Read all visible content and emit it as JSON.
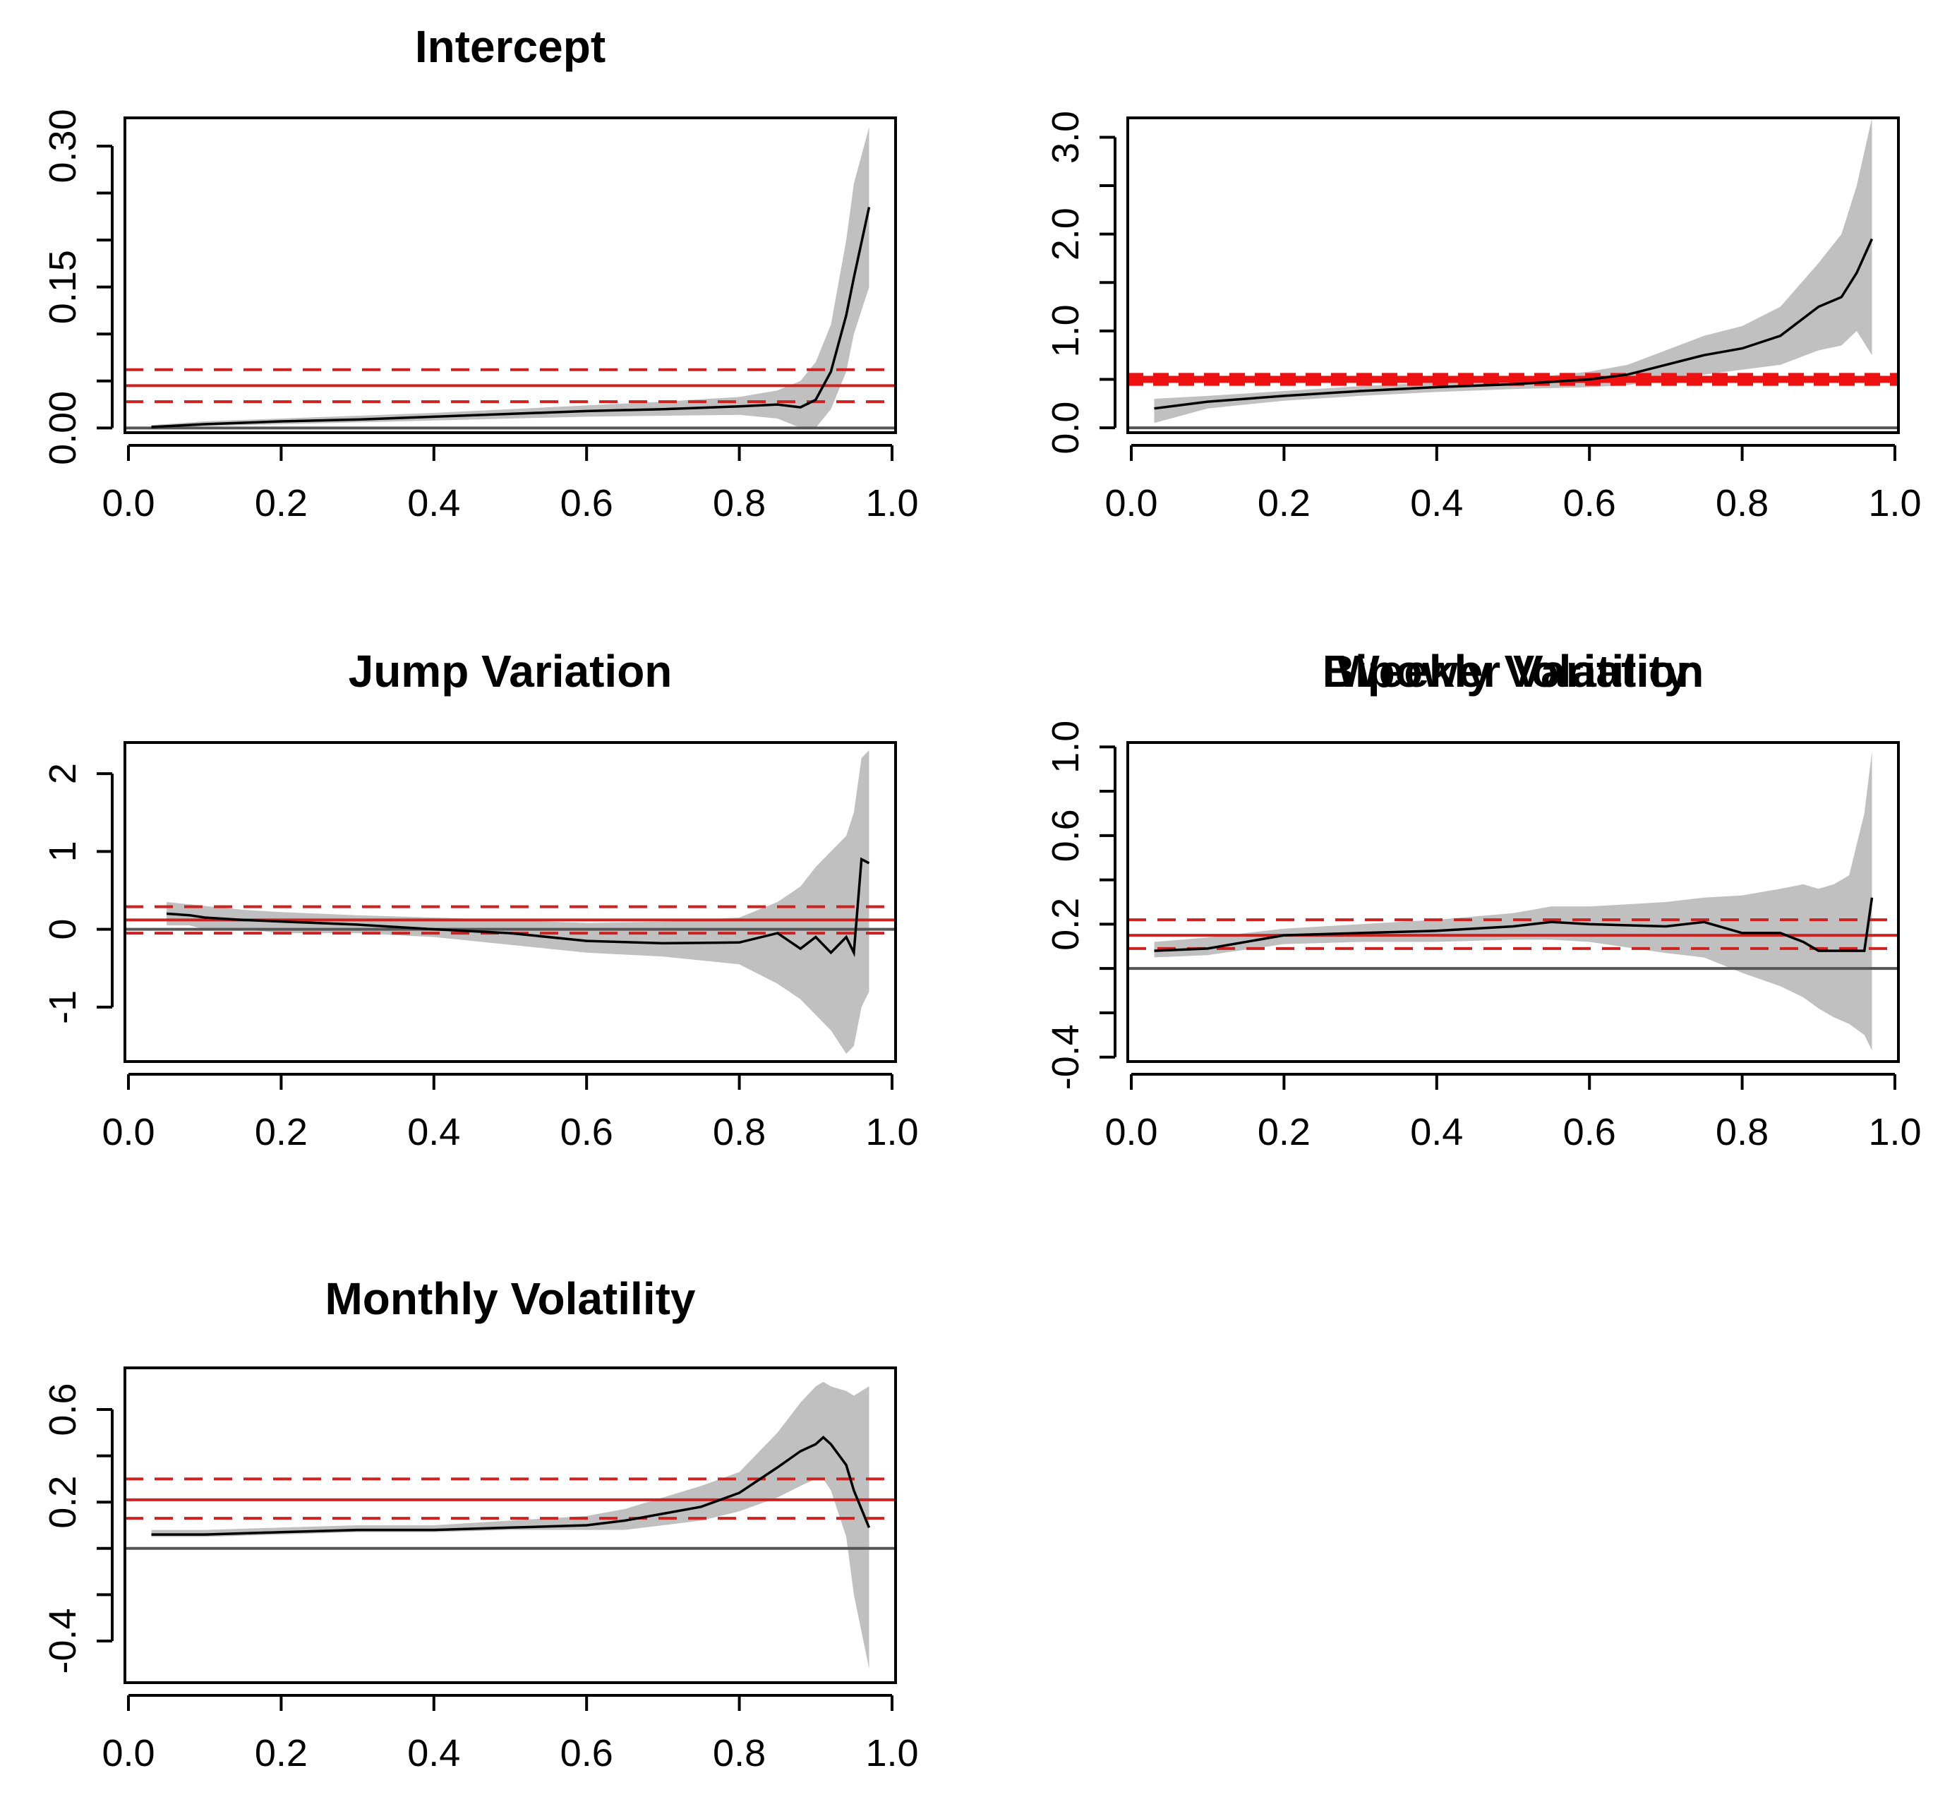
{
  "chart_data": [
    {
      "type": "line",
      "title": "Intercept",
      "xlabel": "",
      "ylabel": "",
      "xlim": [
        0.0,
        1.0
      ],
      "ylim": [
        -0.005,
        0.33
      ],
      "x_ticks": [
        "0.0",
        "0.2",
        "0.4",
        "0.6",
        "0.8",
        "1.0"
      ],
      "y_ticks": [
        0.0,
        0.05,
        0.1,
        0.15,
        0.2,
        0.25,
        0.3
      ],
      "y_tick_labels": [
        "0.00",
        "",
        "",
        "0.15",
        "",
        "",
        "0.30"
      ],
      "zero_line": 0,
      "reference_lines": {
        "estimate": 0.045,
        "lower": 0.028,
        "upper": 0.062,
        "color": "#cc2222"
      },
      "series": [
        {
          "x": [
            0.03,
            0.1,
            0.2,
            0.3,
            0.4,
            0.5,
            0.6,
            0.7,
            0.8,
            0.85,
            0.88,
            0.9,
            0.92,
            0.94,
            0.95,
            0.97
          ],
          "values": [
            0.001,
            0.004,
            0.007,
            0.009,
            0.012,
            0.015,
            0.018,
            0.02,
            0.023,
            0.025,
            0.022,
            0.03,
            0.06,
            0.12,
            0.16,
            0.235
          ],
          "lower": [
            0.0,
            0.002,
            0.004,
            0.006,
            0.008,
            0.01,
            0.012,
            0.013,
            0.014,
            0.01,
            0.0,
            0.0,
            0.02,
            0.06,
            0.1,
            0.15
          ],
          "upper": [
            0.003,
            0.007,
            0.01,
            0.013,
            0.016,
            0.02,
            0.024,
            0.028,
            0.033,
            0.04,
            0.05,
            0.07,
            0.11,
            0.2,
            0.26,
            0.32
          ]
        }
      ]
    },
    {
      "type": "line",
      "title": "Bipower Variation",
      "xlabel": "",
      "ylabel": "",
      "xlim": [
        0.0,
        1.0
      ],
      "ylim": [
        -0.05,
        3.2
      ],
      "x_ticks": [
        "0.0",
        "0.2",
        "0.4",
        "0.6",
        "0.8",
        "1.0"
      ],
      "y_ticks": [
        0.0,
        0.5,
        1.0,
        1.5,
        2.0,
        2.5,
        3.0
      ],
      "y_tick_labels": [
        "0.0",
        "",
        "1.0",
        "",
        "2.0",
        "",
        "3.0"
      ],
      "zero_line": 0,
      "reference_lines": {
        "estimate": 0.5,
        "lower": 0.47,
        "upper": 0.53,
        "color": "#ee1111"
      },
      "series": [
        {
          "x": [
            0.03,
            0.1,
            0.2,
            0.3,
            0.4,
            0.5,
            0.6,
            0.65,
            0.7,
            0.75,
            0.8,
            0.85,
            0.9,
            0.93,
            0.95,
            0.97
          ],
          "values": [
            0.2,
            0.27,
            0.33,
            0.38,
            0.42,
            0.45,
            0.5,
            0.55,
            0.65,
            0.75,
            0.82,
            0.95,
            1.25,
            1.35,
            1.6,
            1.95
          ],
          "lower": [
            0.05,
            0.2,
            0.28,
            0.33,
            0.37,
            0.4,
            0.42,
            0.44,
            0.5,
            0.55,
            0.6,
            0.65,
            0.8,
            0.85,
            1.0,
            0.75
          ],
          "upper": [
            0.3,
            0.33,
            0.38,
            0.43,
            0.47,
            0.5,
            0.58,
            0.65,
            0.8,
            0.95,
            1.05,
            1.25,
            1.7,
            2.0,
            2.5,
            3.2
          ]
        }
      ]
    },
    {
      "type": "line",
      "title": "Jump Variation",
      "xlabel": "",
      "ylabel": "",
      "xlim": [
        0.0,
        1.0
      ],
      "ylim": [
        -1.7,
        2.4
      ],
      "x_ticks": [
        "0.0",
        "0.2",
        "0.4",
        "0.6",
        "0.8",
        "1.0"
      ],
      "y_ticks": [
        -1,
        0,
        1,
        2
      ],
      "y_tick_labels": [
        "-1",
        "0",
        "1",
        "2"
      ],
      "zero_line": 0,
      "reference_lines": {
        "estimate": 0.12,
        "lower": -0.05,
        "upper": 0.29,
        "color": "#cc2222"
      },
      "series": [
        {
          "x": [
            0.05,
            0.08,
            0.1,
            0.15,
            0.2,
            0.3,
            0.4,
            0.5,
            0.6,
            0.7,
            0.8,
            0.85,
            0.88,
            0.9,
            0.92,
            0.94,
            0.95,
            0.96,
            0.97
          ],
          "values": [
            0.2,
            0.18,
            0.15,
            0.12,
            0.1,
            0.06,
            0.0,
            -0.05,
            -0.15,
            -0.18,
            -0.17,
            -0.05,
            -0.25,
            -0.1,
            -0.3,
            -0.1,
            -0.3,
            0.9,
            0.85
          ],
          "lower": [
            0.05,
            0.05,
            0.0,
            0.0,
            -0.05,
            -0.05,
            -0.1,
            -0.2,
            -0.3,
            -0.35,
            -0.45,
            -0.7,
            -0.9,
            -1.1,
            -1.3,
            -1.6,
            -1.5,
            -1.0,
            -0.8
          ],
          "upper": [
            0.35,
            0.32,
            0.3,
            0.25,
            0.22,
            0.18,
            0.15,
            0.12,
            0.08,
            0.1,
            0.15,
            0.35,
            0.55,
            0.8,
            1.0,
            1.2,
            1.5,
            2.2,
            2.3
          ]
        }
      ]
    },
    {
      "type": "line",
      "title": "Weekly Volatility",
      "xlabel": "",
      "ylabel": "",
      "xlim": [
        0.0,
        1.0
      ],
      "ylim": [
        -0.42,
        1.02
      ],
      "x_ticks": [
        "0.0",
        "0.2",
        "0.4",
        "0.6",
        "0.8",
        "1.0"
      ],
      "y_ticks": [
        -0.4,
        -0.2,
        0.0,
        0.2,
        0.4,
        0.6,
        0.8,
        1.0
      ],
      "y_tick_labels": [
        "-0.4",
        "",
        "",
        "0.2",
        "",
        "0.6",
        "",
        "1.0"
      ],
      "zero_line": 0,
      "reference_lines": {
        "estimate": 0.15,
        "lower": 0.09,
        "upper": 0.22,
        "color": "#cc2222"
      },
      "series": [
        {
          "x": [
            0.03,
            0.1,
            0.2,
            0.3,
            0.4,
            0.5,
            0.55,
            0.6,
            0.7,
            0.75,
            0.8,
            0.85,
            0.88,
            0.9,
            0.92,
            0.94,
            0.96,
            0.97
          ],
          "values": [
            0.08,
            0.09,
            0.15,
            0.16,
            0.17,
            0.19,
            0.21,
            0.2,
            0.19,
            0.21,
            0.16,
            0.16,
            0.12,
            0.08,
            0.08,
            0.08,
            0.08,
            0.32
          ],
          "lower": [
            0.05,
            0.06,
            0.11,
            0.12,
            0.12,
            0.13,
            0.13,
            0.12,
            0.07,
            0.05,
            -0.02,
            -0.08,
            -0.13,
            -0.18,
            -0.22,
            -0.25,
            -0.3,
            -0.37
          ],
          "upper": [
            0.12,
            0.14,
            0.18,
            0.2,
            0.22,
            0.25,
            0.28,
            0.28,
            0.3,
            0.32,
            0.33,
            0.36,
            0.38,
            0.36,
            0.38,
            0.42,
            0.7,
            0.98
          ]
        }
      ]
    },
    {
      "type": "line",
      "title": "Monthly Volatility",
      "xlabel": "",
      "ylabel": "",
      "xlim": [
        0.0,
        1.0
      ],
      "ylim": [
        -0.58,
        0.78
      ],
      "x_ticks": [
        "0.0",
        "0.2",
        "0.4",
        "0.6",
        "0.8",
        "1.0"
      ],
      "y_ticks": [
        -0.4,
        -0.2,
        0.0,
        0.2,
        0.4,
        0.6
      ],
      "y_tick_labels": [
        "-0.4",
        "",
        "",
        "0.2",
        "",
        "0.6"
      ],
      "zero_line": 0,
      "reference_lines": {
        "estimate": 0.21,
        "lower": 0.13,
        "upper": 0.3,
        "color": "#cc2222"
      },
      "series": [
        {
          "x": [
            0.03,
            0.1,
            0.2,
            0.3,
            0.4,
            0.5,
            0.6,
            0.65,
            0.7,
            0.75,
            0.8,
            0.85,
            0.88,
            0.9,
            0.91,
            0.92,
            0.94,
            0.95,
            0.97
          ],
          "values": [
            0.06,
            0.06,
            0.07,
            0.08,
            0.08,
            0.09,
            0.1,
            0.12,
            0.15,
            0.18,
            0.24,
            0.35,
            0.42,
            0.45,
            0.48,
            0.45,
            0.36,
            0.25,
            0.09
          ],
          "lower": [
            0.05,
            0.05,
            0.06,
            0.07,
            0.07,
            0.08,
            0.08,
            0.08,
            0.1,
            0.12,
            0.16,
            0.22,
            0.27,
            0.3,
            0.3,
            0.25,
            0.05,
            -0.2,
            -0.52
          ],
          "upper": [
            0.08,
            0.08,
            0.09,
            0.1,
            0.1,
            0.12,
            0.14,
            0.17,
            0.22,
            0.27,
            0.33,
            0.5,
            0.63,
            0.7,
            0.72,
            0.7,
            0.68,
            0.66,
            0.7
          ]
        }
      ]
    }
  ]
}
